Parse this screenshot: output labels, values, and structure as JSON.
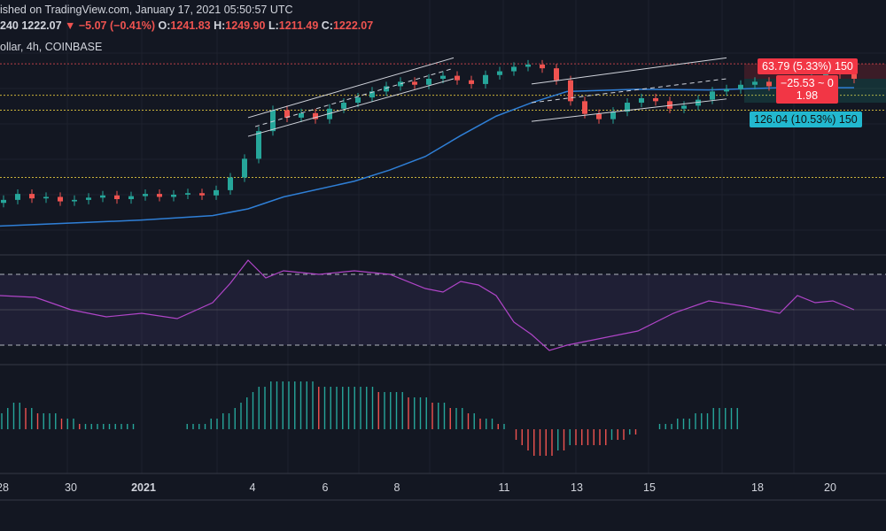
{
  "header": {
    "published": "ished on TradingView.com, January 17, 2021 05:50:57 UTC",
    "interval": "240",
    "last": "1222.07",
    "change": "−5.07 (−0.41%)",
    "o_label": "O:",
    "o_value": "1241.83",
    "h_label": "H:",
    "h_value": "1249.90",
    "l_label": "L:",
    "l_value": "1211.49",
    "c_label": "C:",
    "c_value": "1222.07",
    "symbol": "ollar, 4h, COINBASE"
  },
  "labels": {
    "target": "63.79 (5.33%) 150",
    "position_line1": "−25.53 ~ 0",
    "position_line2": "1.98",
    "stop": "126.04 (10.53%) 150"
  },
  "colors": {
    "background": "#131722",
    "up": "#26a69a",
    "down": "#ef5350",
    "ma": "#2f7fd6",
    "rsi": "#b045c8",
    "channel": "#d1d4dc",
    "hline_yellow": "#c9b23a",
    "hline_red": "#b94047",
    "target_bg": "#f23645",
    "stop_bg": "#22ab94"
  },
  "xaxis": {
    "ticks": [
      {
        "label": "28",
        "bold": false
      },
      {
        "label": "30",
        "bold": false
      },
      {
        "label": "2021",
        "bold": true
      },
      {
        "label": "4",
        "bold": false
      },
      {
        "label": "6",
        "bold": false
      },
      {
        "label": "8",
        "bold": false
      },
      {
        "label": "11",
        "bold": false
      },
      {
        "label": "13",
        "bold": false
      },
      {
        "label": "15",
        "bold": false
      },
      {
        "label": "18",
        "bold": false
      },
      {
        "label": "20",
        "bold": false
      }
    ]
  },
  "chart_data": {
    "type": "line",
    "title": "",
    "xlabel": "",
    "ylabel": "",
    "x_ticks": [
      "28",
      "30",
      "2021",
      "4",
      "6",
      "8",
      "11",
      "13",
      "15",
      "18",
      "20"
    ],
    "grid": true,
    "price_series": {
      "name": "Candles (close)",
      "points": [
        [
          1,
          1060
        ],
        [
          5,
          1068
        ],
        [
          9,
          1062
        ],
        [
          13,
          1064
        ],
        [
          17,
          1058
        ],
        [
          21,
          1060
        ],
        [
          25,
          1063
        ],
        [
          29,
          1066
        ],
        [
          33,
          1061
        ],
        [
          37,
          1065
        ],
        [
          41,
          1068
        ],
        [
          45,
          1064
        ],
        [
          49,
          1067
        ],
        [
          53,
          1069
        ],
        [
          57,
          1066
        ],
        [
          61,
          1073
        ],
        [
          65,
          1090
        ],
        [
          69,
          1115
        ],
        [
          73,
          1152
        ],
        [
          77,
          1180
        ],
        [
          81,
          1170
        ],
        [
          85,
          1176
        ],
        [
          89,
          1168
        ],
        [
          93,
          1182
        ],
        [
          97,
          1190
        ],
        [
          101,
          1197
        ],
        [
          105,
          1205
        ],
        [
          109,
          1212
        ],
        [
          113,
          1218
        ],
        [
          117,
          1214
        ],
        [
          121,
          1222
        ],
        [
          125,
          1226
        ],
        [
          129,
          1220
        ],
        [
          133,
          1215
        ],
        [
          137,
          1227
        ],
        [
          141,
          1232
        ],
        [
          145,
          1238
        ],
        [
          149,
          1241
        ],
        [
          153,
          1236
        ],
        [
          157,
          1220
        ],
        [
          161,
          1192
        ],
        [
          165,
          1175
        ],
        [
          169,
          1168
        ],
        [
          173,
          1178
        ],
        [
          177,
          1190
        ],
        [
          181,
          1196
        ],
        [
          185,
          1192
        ],
        [
          189,
          1182
        ],
        [
          193,
          1186
        ],
        [
          197,
          1194
        ],
        [
          201,
          1205
        ],
        [
          205,
          1208
        ],
        [
          209,
          1214
        ],
        [
          213,
          1218
        ],
        [
          217,
          1212
        ],
        [
          221,
          1202
        ],
        [
          225,
          1210
        ],
        [
          229,
          1224
        ],
        [
          233,
          1230
        ],
        [
          237,
          1228
        ],
        [
          241,
          1222
        ]
      ]
    },
    "ma_series": {
      "name": "MA",
      "points": [
        [
          0,
          1025
        ],
        [
          40,
          1033
        ],
        [
          60,
          1039
        ],
        [
          70,
          1048
        ],
        [
          80,
          1064
        ],
        [
          100,
          1085
        ],
        [
          110,
          1100
        ],
        [
          120,
          1118
        ],
        [
          130,
          1146
        ],
        [
          140,
          1172
        ],
        [
          150,
          1190
        ],
        [
          160,
          1205
        ],
        [
          180,
          1208
        ],
        [
          200,
          1207
        ],
        [
          220,
          1210
        ],
        [
          241,
          1210
        ]
      ]
    },
    "rsi_series": {
      "name": "RSI",
      "ylim": [
        20,
        80
      ],
      "levels": [
        70,
        50,
        30
      ],
      "points": [
        [
          0,
          58
        ],
        [
          10,
          57
        ],
        [
          20,
          50
        ],
        [
          30,
          46
        ],
        [
          40,
          48
        ],
        [
          50,
          45
        ],
        [
          60,
          54
        ],
        [
          65,
          65
        ],
        [
          70,
          78
        ],
        [
          75,
          68
        ],
        [
          80,
          72
        ],
        [
          90,
          70
        ],
        [
          100,
          72
        ],
        [
          110,
          70
        ],
        [
          120,
          62
        ],
        [
          125,
          60
        ],
        [
          130,
          66
        ],
        [
          135,
          64
        ],
        [
          140,
          58
        ],
        [
          145,
          43
        ],
        [
          150,
          36
        ],
        [
          155,
          27
        ],
        [
          160,
          30
        ],
        [
          170,
          34
        ],
        [
          180,
          38
        ],
        [
          190,
          48
        ],
        [
          200,
          55
        ],
        [
          210,
          52
        ],
        [
          220,
          48
        ],
        [
          225,
          58
        ],
        [
          230,
          54
        ],
        [
          235,
          55
        ],
        [
          241,
          50
        ]
      ]
    },
    "macd_series": {
      "name": "MACD histogram",
      "values": [
        3,
        4,
        5,
        5,
        4,
        4,
        3,
        3,
        3,
        3,
        2,
        2,
        2,
        1,
        1,
        1,
        1,
        1,
        1,
        1,
        1,
        1,
        1,
        0,
        0,
        0,
        0,
        0,
        0,
        0,
        0,
        1,
        1,
        1,
        1,
        2,
        2,
        3,
        3,
        4,
        5,
        6,
        7,
        8,
        8,
        9,
        9,
        9,
        9,
        9,
        9,
        9,
        9,
        8,
        8,
        8,
        8,
        8,
        8,
        8,
        8,
        8,
        8,
        7,
        7,
        7,
        7,
        7,
        6,
        6,
        6,
        6,
        5,
        5,
        5,
        4,
        4,
        4,
        3,
        3,
        2,
        2,
        2,
        1,
        1,
        0,
        -2,
        -3,
        -4,
        -5,
        -5,
        -5,
        -5,
        -4,
        -4,
        -3,
        -3,
        -3,
        -3,
        -3,
        -3,
        -3,
        -2,
        -2,
        -2,
        -1,
        -1,
        0,
        0,
        0,
        1,
        1,
        1,
        2,
        2,
        2,
        3,
        3,
        3,
        4,
        4,
        4,
        4,
        4
      ]
    },
    "channels": [
      {
        "x1": 70,
        "y1": 1170,
        "x2": 128,
        "y2": 1250
      },
      {
        "x1": 70,
        "y1": 1145,
        "x2": 128,
        "y2": 1222
      },
      {
        "x1": 150,
        "y1": 1215,
        "x2": 205,
        "y2": 1250
      },
      {
        "x1": 150,
        "y1": 1165,
        "x2": 205,
        "y2": 1195
      }
    ],
    "hlines": [
      1242,
      1200,
      1180,
      1090
    ],
    "ylim": [
      990,
      1280
    ],
    "xlim": [
      0,
      250
    ]
  }
}
